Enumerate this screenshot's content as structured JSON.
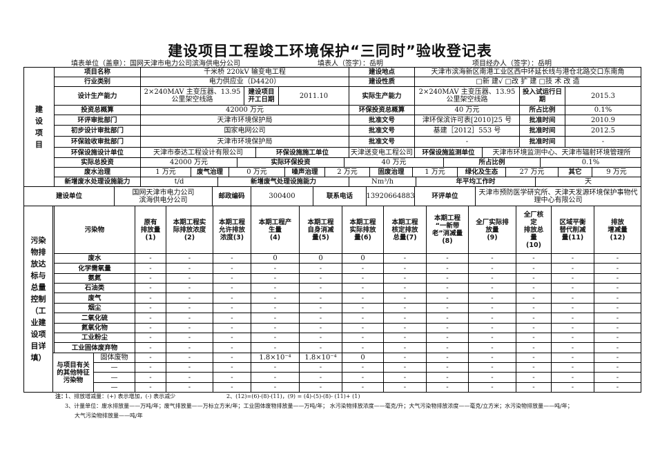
{
  "title": "建设项目工程竣工环境保护“三同时”验收登记表",
  "header": {
    "fill_unit": "填表单位（盖章）：国网天津市电力公司滨海供电分公司",
    "filler": "填表人（签字）：岳明",
    "manager": "项目经办人（签字）：岳明"
  },
  "project": {
    "section_label": "建\n设\n项\n目",
    "name_label": "项目名称",
    "name": "千米桥 220kV 输变电工程",
    "location_label": "建设地点",
    "location": "天津市滨海新区南港工业区西中环延长线与港仓北路交口东南角",
    "industry_label": "行业类别",
    "industry": "电力供应业（D4420）",
    "nature_label": "建设性质",
    "nature": "□新  建√      □改 扩 建      □技 术 改 造",
    "design_capacity_label": "设计生产能力",
    "design_capacity": "2×240MAV 主变压器、13.95\n公里架空线路",
    "start_date_label": "建设项目\n开工日期",
    "start_date": "2011.10",
    "actual_capacity_label": "实际生产能力",
    "actual_capacity": "2×240MAV 主变压器、13.95\n公里架空线路",
    "trial_date_label": "投入试运行日\n期",
    "trial_date": "2015.3",
    "budget_label": "投资总概算",
    "budget": "42000 万元",
    "env_budget_label": "环保投资总概算",
    "env_budget": "40 万元",
    "ratio_label": "所占比例",
    "ratio": "0.1%",
    "eia_dept_label": "环评审批部门",
    "eia_dept": "天津市环境保护局",
    "eia_doc_label": "批准文号",
    "eia_doc": "津环保滨许可表[2010]25 号",
    "eia_time_label": "批准时间",
    "eia_time": "2010.9",
    "prelim_dept_label": "初步设计审批部门",
    "prelim_dept": "国家电网公司",
    "prelim_doc_label": "批准文号",
    "prelim_doc": "基建［2012］553 号",
    "prelim_time_label": "批准时间",
    "prelim_time": "2012.5",
    "acc_dept_label": "环保验收审批部门",
    "acc_dept": "天津市环境保护局",
    "acc_doc_label": "批准文号",
    "acc_doc": "-",
    "acc_time_label": "批准时间",
    "acc_time": "-",
    "facility_design_label": "环保设施设计单位",
    "facility_design": "天津市泰达工程设计有限公司",
    "facility_build_label": "环保设施施工单位",
    "facility_build": "天津送变电工程公司",
    "facility_monitor_label": "环保设施监测单位",
    "facility_monitor": "天津市环境监测中心、天津市辐射环境管理所",
    "actual_total_label": "实际总投资",
    "actual_total": "42000 万元",
    "actual_env_label": "实际环保投资",
    "actual_env": "40 万元",
    "actual_ratio_label": "所占比例",
    "actual_ratio": "0.1%",
    "wastewater_label": "废水治理",
    "wastewater": "1 万元",
    "wastegas_label": "废气治理",
    "wastegas": "0 万元",
    "noise_label": "噪声治理",
    "noise": "2 万元",
    "solid_label": "固废治理",
    "solid": "1 万元",
    "green_label": "绿化及生态",
    "green": "27 万元",
    "other_label": "其它",
    "other": "9 万元",
    "new_ww_label": "新增废水处理设施能力",
    "new_ww": "t/d",
    "new_gas_label": "新增废气处理设施能力",
    "new_gas": "Nm³/h",
    "work_time_label": "年平均工作时",
    "work_time": "天"
  },
  "unit": {
    "label": "建设单位",
    "value": "国网天津市电力公司\n滨海供电分公司",
    "postcode_label": "邮政编码",
    "postcode": "300400",
    "phone_label": "联系电话",
    "phone": "13920664883",
    "eia_unit_label": "环评单位",
    "eia_unit": "天津市预防医学研究所、天津天发源环境保护事物代理中心有限公司"
  },
  "pollution": {
    "section_label": "污染\n物排\n放达\n标与\n总量\n控制\n（工\n业建\n设项\n目详\n填）",
    "columns": [
      "污染物",
      "原有\n排放量\n(1)",
      "本期工程实\n际排放浓度\n(2)",
      "本期工程\n允许排放\n浓度(3)",
      "本期工程产\n生量\n(4)",
      "本期工程\n自身消减\n量(5)",
      "本期工程\n实际排放\n量(6)",
      "本期工程\n核定排放\n总量(7)",
      "本期工程\n“一新带\n老”消减量\n(8)",
      "全厂实际排\n放量\n(9)",
      "全厂核\n定\n排放总\n量\n(10)",
      "区域平衡\n替代削减\n量(11)",
      "排放\n增减量\n(12)"
    ],
    "rows": [
      {
        "name": "废水",
        "values": [
          "-",
          "-",
          "-",
          "0",
          "0",
          "0",
          "-",
          "-",
          "-",
          "-",
          "-",
          "-"
        ]
      },
      {
        "name": "化学需氧量",
        "values": [
          "-",
          "-",
          "-",
          "-",
          "-",
          "-",
          "-",
          "-",
          "-",
          "-",
          "-",
          "-"
        ]
      },
      {
        "name": "氨氮",
        "values": [
          "-",
          "-",
          "-",
          "-",
          "-",
          "-",
          "-",
          "-",
          "-",
          "-",
          "-",
          "-"
        ]
      },
      {
        "name": "石油类",
        "values": [
          "-",
          "-",
          "-",
          "-",
          "-",
          "-",
          "-",
          "-",
          "-",
          "-",
          "-",
          "-"
        ]
      },
      {
        "name": "废气",
        "values": [
          "-",
          "-",
          "-",
          "-",
          "-",
          "-",
          "-",
          "-",
          "-",
          "-",
          "-",
          "-"
        ]
      },
      {
        "name": "烟尘",
        "values": [
          "-",
          "-",
          "-",
          "-",
          "-",
          "-",
          "-",
          "-",
          "-",
          "-",
          "-",
          "-"
        ]
      },
      {
        "name": "二氧化硫",
        "values": [
          "-",
          "-",
          "-",
          "-",
          "-",
          "-",
          "-",
          "-",
          "-",
          "-",
          "-",
          "-"
        ]
      },
      {
        "name": "氮氧化物",
        "values": [
          "-",
          "-",
          "-",
          "-",
          "-",
          "-",
          "-",
          "-",
          "-",
          "-",
          "-",
          "-"
        ]
      },
      {
        "name": "工业粉尘",
        "values": [
          "-",
          "-",
          "-",
          "-",
          "-",
          "-",
          "-",
          "-",
          "-",
          "-",
          "-",
          "-"
        ]
      },
      {
        "name": "工业固体废弃物",
        "values": [
          "-",
          "-",
          "-",
          "-",
          "-",
          "-",
          "-",
          "-",
          "-",
          "-",
          "-",
          "-"
        ]
      }
    ],
    "other_label": "与项目有关\n的其他特征\n污染物",
    "other_rows": [
      {
        "name": "固体废物",
        "values": [
          "-",
          "-",
          "-",
          "1.8×10⁻⁴",
          "1.8×10⁻⁴",
          "0",
          "-",
          "-",
          "-",
          "-",
          "-",
          "-"
        ]
      },
      {
        "name": "—",
        "values": [
          "-",
          "-",
          "-",
          "-",
          "-",
          "-",
          "-",
          "-",
          "-",
          "-",
          "-",
          "-"
        ]
      },
      {
        "name": "—",
        "values": [
          "-",
          "-",
          "-",
          "-",
          "-",
          "-",
          "-",
          "-",
          "-",
          "-",
          "-",
          "-"
        ]
      },
      {
        "name": "—",
        "values": [
          "-",
          "-",
          "-",
          "-",
          "-",
          "-",
          "-",
          "-",
          "-",
          "-",
          "-",
          "-"
        ]
      }
    ]
  },
  "notes": {
    "label": "注：",
    "n1": "1、排放增减量：(+) 表示增加，(-) 表示减少",
    "n2": "2、(12)=(6)-(8)-(11)，(9) = (4)-(5)-(8)- (11)+ (1)",
    "n3": "3、计量单位：废水排放量——万吨/年；废气排放量——万标立方米/年；工业固体废物排放量——万吨/年；  水污染物排放浓度——毫克/升；大气污染物排放浓度——毫克/立方米；水污染物排放量——吨/年；",
    "n4": "大气污染物排放量——吨/年"
  }
}
